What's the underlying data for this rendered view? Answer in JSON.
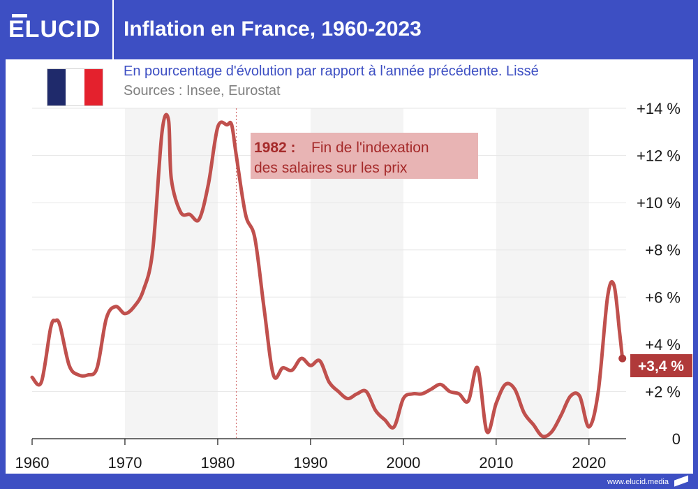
{
  "brand": {
    "logo_text": "ELUCID",
    "colors": {
      "header": "#3d4fc3",
      "line": "#c0504d",
      "annotation_bg": "#e8b4b4",
      "annotation_text": "#a52a2a",
      "label_bg": "#b03a3a"
    }
  },
  "header": {
    "title": "Inflation en France, 1960-2023"
  },
  "flag": {
    "name": "france-flag",
    "colors": [
      "#1f2a6b",
      "#ffffff",
      "#e4212d"
    ]
  },
  "subtitle": "En pourcentage d'évolution par rapport à l'année précédente. Lissé",
  "sources": "Sources : Insee, Eurostat",
  "footer": {
    "website": "www.elucid.media"
  },
  "chart_data": {
    "type": "line",
    "title": "Inflation en France, 1960-2023",
    "subtitle": "En pourcentage d'évolution par rapport à l'année précédente. Lissé",
    "xlabel": "",
    "ylabel": "",
    "xlim": [
      1960,
      2024
    ],
    "ylim": [
      0,
      14
    ],
    "x_ticks": [
      1960,
      1970,
      1980,
      1990,
      2000,
      2010,
      2020
    ],
    "y_ticks": [
      {
        "value": 0,
        "label": "0"
      },
      {
        "value": 2,
        "label": "+2 %"
      },
      {
        "value": 4,
        "label": "+4 %"
      },
      {
        "value": 6,
        "label": "+6 %"
      },
      {
        "value": 8,
        "label": "+8 %"
      },
      {
        "value": 10,
        "label": "+10 %"
      },
      {
        "value": 12,
        "label": "+12 %"
      },
      {
        "value": 14,
        "label": "+14 %"
      }
    ],
    "shaded_bands": [
      [
        1970,
        1980
      ],
      [
        1990,
        2000
      ],
      [
        2010,
        2020
      ]
    ],
    "series": [
      {
        "name": "Inflation (%)",
        "x": [
          1960,
          1961,
          1962,
          1962.5,
          1963,
          1964,
          1965,
          1966,
          1967,
          1968,
          1969,
          1970,
          1971,
          1972,
          1973,
          1974,
          1974.7,
          1975,
          1976,
          1977,
          1978,
          1979,
          1980,
          1981,
          1981.5,
          1982,
          1983,
          1984,
          1985,
          1986,
          1987,
          1988,
          1989,
          1990,
          1991,
          1992,
          1993,
          1994,
          1995,
          1996,
          1997,
          1998,
          1999,
          2000,
          2001,
          2002,
          2003,
          2004,
          2005,
          2006,
          2007,
          2008,
          2009,
          2010,
          2011,
          2012,
          2013,
          2014,
          2015,
          2016,
          2017,
          2018,
          2019,
          2020,
          2021,
          2022,
          2022.7,
          2023.3,
          2023.6
        ],
        "values": [
          2.6,
          2.4,
          4.7,
          5.0,
          4.8,
          3.1,
          2.7,
          2.7,
          3.0,
          5.1,
          5.6,
          5.3,
          5.6,
          6.3,
          8.0,
          13.0,
          13.5,
          11.0,
          9.6,
          9.5,
          9.3,
          10.8,
          13.2,
          13.3,
          13.3,
          12.0,
          9.5,
          8.5,
          5.5,
          2.7,
          3.0,
          2.9,
          3.4,
          3.1,
          3.3,
          2.4,
          2.0,
          1.7,
          1.9,
          2.0,
          1.2,
          0.8,
          0.5,
          1.7,
          1.9,
          1.9,
          2.1,
          2.3,
          2.0,
          1.9,
          1.6,
          3.0,
          0.3,
          1.5,
          2.3,
          2.1,
          1.1,
          0.6,
          0.1,
          0.3,
          1.0,
          1.8,
          1.8,
          0.5,
          2.0,
          6.0,
          6.5,
          4.5,
          3.4
        ]
      }
    ],
    "annotations": [
      {
        "x": 1982,
        "label_bold": "1982 :",
        "text_line1": "Fin de l'indexation",
        "text_line2": "des salaires sur les prix"
      }
    ],
    "last_value_label": "+3,4 %",
    "last_value": 3.4
  }
}
